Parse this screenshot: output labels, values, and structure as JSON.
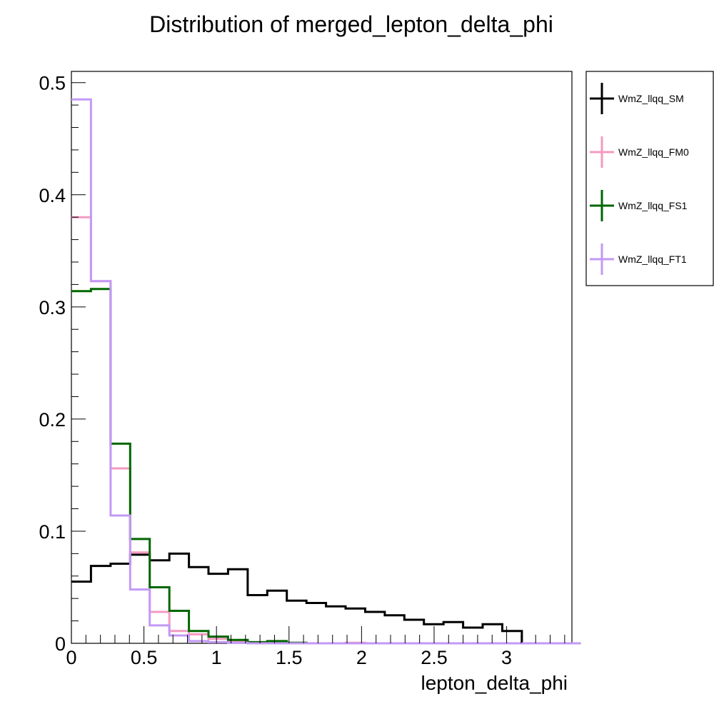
{
  "chart_data": {
    "type": "line",
    "title": "Distribution of merged_lepton_delta_phi",
    "xlabel": "lepton_delta_phi",
    "ylabel": "",
    "xlim": [
      0,
      3.45
    ],
    "ylim": [
      0,
      0.51
    ],
    "bin_width": 0.135,
    "x_ticks": [
      0,
      0.5,
      1,
      1.5,
      2,
      2.5,
      3
    ],
    "x_tick_labels": [
      "0",
      "0.5",
      "1",
      "1.5",
      "2",
      "2.5",
      "3"
    ],
    "y_ticks": [
      0,
      0.1,
      0.2,
      0.3,
      0.4,
      0.5
    ],
    "y_tick_labels": [
      "0",
      "0.1",
      "0.2",
      "0.3",
      "0.4",
      "0.5"
    ],
    "grid": false,
    "legend_position": "right",
    "series": [
      {
        "name": "WmZ_llqq_SM",
        "color": "#000000",
        "values": [
          0.055,
          0.069,
          0.071,
          0.079,
          0.074,
          0.08,
          0.068,
          0.062,
          0.066,
          0.043,
          0.047,
          0.038,
          0.036,
          0.033,
          0.031,
          0.028,
          0.025,
          0.021,
          0.017,
          0.019,
          0.014,
          0.017,
          0.011,
          0,
          0,
          0
        ]
      },
      {
        "name": "WmZ_llqq_FM0",
        "color": "#f49ac1",
        "values": [
          0.38,
          0.323,
          0.156,
          0.081,
          0.028,
          0.011,
          0.008,
          0.004,
          0.002,
          0.001,
          0.001,
          0.0005,
          0,
          0,
          0.0005,
          0,
          0,
          0,
          0,
          0,
          0,
          0,
          0,
          0,
          0,
          0
        ]
      },
      {
        "name": "WmZ_llqq_FS1",
        "color": "#006600",
        "values": [
          0.314,
          0.316,
          0.178,
          0.093,
          0.05,
          0.029,
          0.011,
          0.006,
          0.003,
          0.001,
          0.002,
          0.0005,
          0,
          0,
          0,
          0,
          0,
          0,
          0,
          0,
          0,
          0,
          0,
          0,
          0,
          0
        ]
      },
      {
        "name": "WmZ_llqq_FT1",
        "color": "#c399f5",
        "values": [
          0.485,
          0.323,
          0.114,
          0.048,
          0.016,
          0.007,
          0.002,
          0.001,
          0.0005,
          0,
          0,
          0,
          0,
          0,
          0,
          0,
          0,
          0,
          0,
          0,
          0,
          0,
          0,
          0,
          0,
          0
        ]
      }
    ]
  }
}
